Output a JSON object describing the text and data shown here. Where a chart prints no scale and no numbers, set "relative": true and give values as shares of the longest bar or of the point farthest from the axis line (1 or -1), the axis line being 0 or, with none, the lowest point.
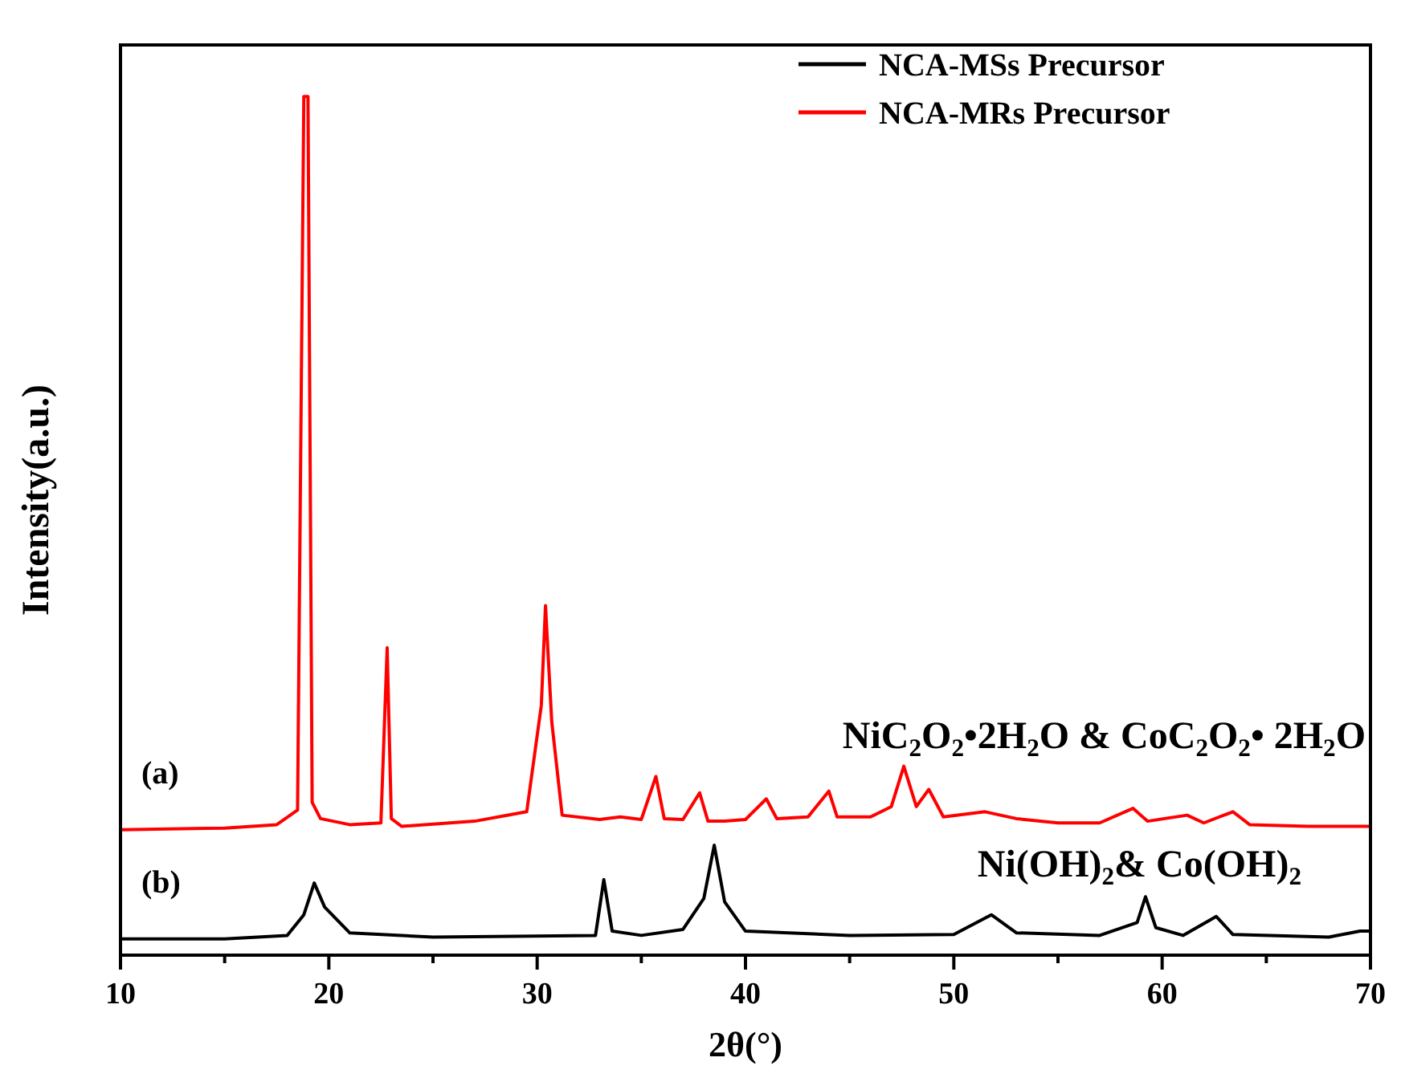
{
  "chart_data": {
    "type": "line",
    "relative": true,
    "xlabel": "2θ(°)",
    "ylabel": "Intensity(a.u.)",
    "xlim": [
      10,
      70
    ],
    "xticks": [
      10,
      {
        "value": 15,
        "label": null
      },
      20,
      {
        "value": 25,
        "label": null
      },
      30,
      {
        "value": 35,
        "label": null
      },
      40,
      {
        "value": 45,
        "label": null
      },
      50,
      {
        "value": 55,
        "label": null
      },
      60,
      {
        "value": 65,
        "label": null
      },
      70
    ],
    "legend": "top right",
    "line_style": "solid",
    "marker": "none",
    "annotations": [
      "(a)",
      "(b)",
      "NiC$_{2}$O$_{2}$•2H$_{2}$O & CoC$_{2}$O$_{2}$• 2H$_{2}$O",
      "Ni(OH)$_{2}$& Co(OH)$_{2}$"
    ],
    "series": [
      {
        "name": "NCA-MSs Precursor",
        "color": "#000000",
        "x": [
          10,
          15,
          18,
          18.8,
          19.3,
          19.8,
          21,
          25,
          32.8,
          33.2,
          33.6,
          35,
          37,
          38.0,
          38.5,
          39.0,
          40,
          45,
          50,
          51.8,
          53,
          57,
          58.8,
          59.2,
          59.7,
          61,
          62.6,
          63.4,
          68,
          69.5,
          70
        ],
        "values": [
          0.019,
          0.019,
          0.023,
          0.047,
          0.084,
          0.056,
          0.026,
          0.021,
          0.023,
          0.088,
          0.028,
          0.023,
          0.03,
          0.066,
          0.128,
          0.062,
          0.028,
          0.023,
          0.024,
          0.047,
          0.026,
          0.023,
          0.038,
          0.068,
          0.032,
          0.023,
          0.045,
          0.024,
          0.021,
          0.028,
          0.028
        ]
      },
      {
        "name": "NCA-MRs Precursor",
        "color": "#ff0000",
        "x": [
          10,
          15,
          17.5,
          18.5,
          18.8,
          19.0,
          19.2,
          19.6,
          21,
          22.5,
          22.8,
          23.0,
          23.5,
          27,
          29.5,
          30.2,
          30.4,
          30.7,
          31.2,
          33,
          34,
          35,
          35.7,
          36.1,
          37,
          37.8,
          38.2,
          39,
          40,
          41,
          41.5,
          43,
          44,
          44.4,
          46,
          47,
          47.6,
          48.2,
          48.8,
          49.5,
          51.5,
          53,
          55,
          57,
          58.6,
          59.3,
          61.2,
          62,
          63.4,
          64.2,
          67,
          70
        ],
        "values": [
          0.146,
          0.148,
          0.152,
          0.169,
          1,
          1,
          0.178,
          0.159,
          0.152,
          0.154,
          0.358,
          0.159,
          0.15,
          0.156,
          0.167,
          0.291,
          0.407,
          0.272,
          0.163,
          0.158,
          0.161,
          0.158,
          0.208,
          0.159,
          0.158,
          0.189,
          0.156,
          0.156,
          0.158,
          0.182,
          0.159,
          0.161,
          0.191,
          0.161,
          0.161,
          0.173,
          0.22,
          0.173,
          0.193,
          0.161,
          0.167,
          0.159,
          0.154,
          0.154,
          0.171,
          0.156,
          0.163,
          0.154,
          0.167,
          0.152,
          0.15,
          0.15
        ]
      }
    ]
  }
}
